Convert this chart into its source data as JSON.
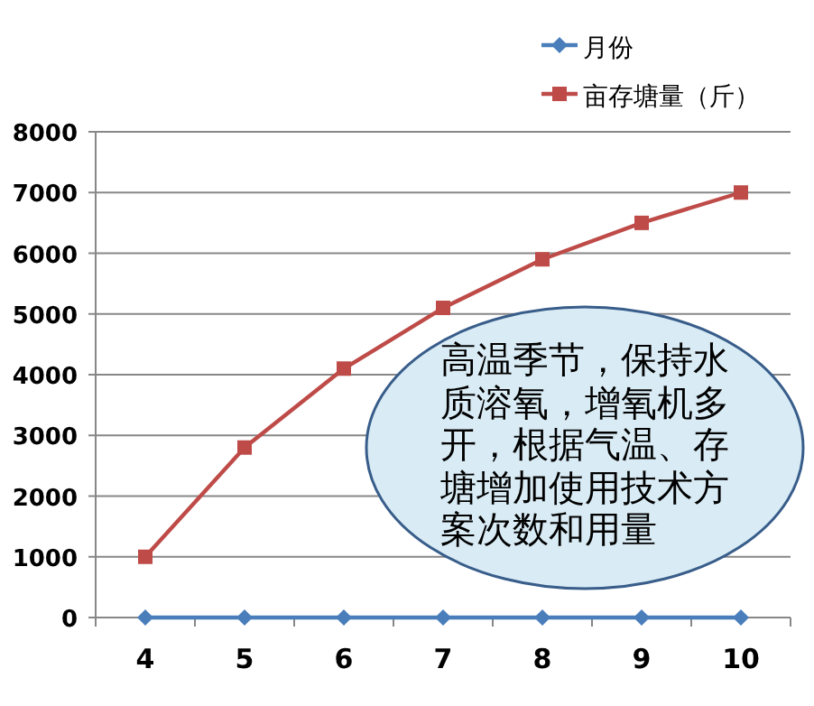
{
  "chart_data": {
    "type": "line",
    "categories": [
      "4",
      "5",
      "6",
      "7",
      "8",
      "9",
      "10"
    ],
    "series": [
      {
        "name": "月份",
        "color": "#4a7ebb",
        "marker": "diamond",
        "values": [
          0,
          0,
          0,
          0,
          0,
          0,
          0
        ]
      },
      {
        "name": "亩存塘量（斤）",
        "color": "#be4b48",
        "marker": "square",
        "values": [
          1000,
          2800,
          4100,
          5100,
          5900,
          6500,
          7000
        ]
      }
    ],
    "ylim": [
      0,
      8000
    ],
    "yticks": [
      0,
      1000,
      2000,
      3000,
      4000,
      5000,
      6000,
      7000,
      8000
    ],
    "grid": "y",
    "legend": "top right",
    "annotations": [
      "高温季节，保持水质溶氧，增氧机多开，根据气温、存塘增加使用技术方案次数和用量"
    ]
  }
}
